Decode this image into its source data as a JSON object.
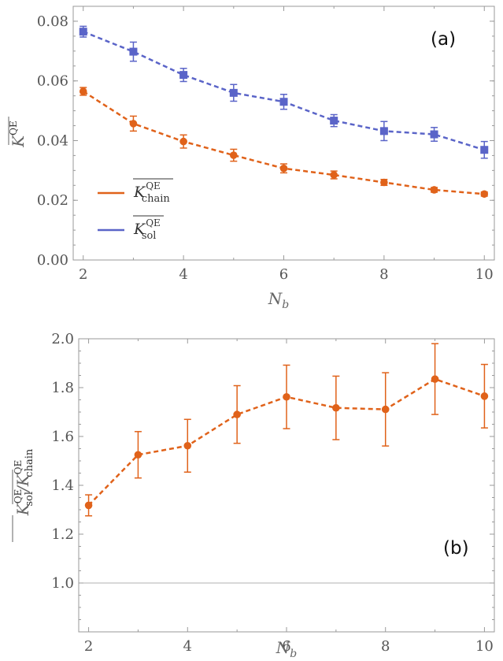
{
  "colors": {
    "orange": "#e0621a",
    "blue": "#5a64c8",
    "axis": "#9a9a9a"
  },
  "chart_data": [
    {
      "type": "line",
      "panel_label": "(a)",
      "xlabel": "N",
      "xlabel_sub": "b",
      "ylabel": "K",
      "ylabel_sup": "QE",
      "xlim": [
        1.8,
        10.2
      ],
      "ylim": [
        0,
        0.085
      ],
      "xticks": [
        2,
        4,
        6,
        8,
        10
      ],
      "xtick_labels": [
        "2",
        "4",
        "6",
        "8",
        "10"
      ],
      "yticks": [
        0,
        0.02,
        0.04,
        0.06,
        0.08
      ],
      "ytick_labels": [
        "0.00",
        "0.02",
        "0.04",
        "0.06",
        "0.08"
      ],
      "x": [
        2,
        3,
        4,
        5,
        6,
        7,
        8,
        9,
        10
      ],
      "series": [
        {
          "name": "K_chain",
          "legend_main": "K",
          "legend_sup": "QE",
          "legend_sub": "chain",
          "color": "#e0621a",
          "marker": "circle",
          "values": [
            0.0565,
            0.0457,
            0.0397,
            0.0351,
            0.0307,
            0.0285,
            0.026,
            0.0235,
            0.0221
          ],
          "errors": [
            0.0013,
            0.0025,
            0.0022,
            0.002,
            0.0015,
            0.0013,
            0.001,
            0.0008,
            0.0007
          ]
        },
        {
          "name": "K_sol",
          "legend_main": "K",
          "legend_sup": "QE",
          "legend_sub": "sol",
          "color": "#5a64c8",
          "marker": "square",
          "values": [
            0.0765,
            0.0698,
            0.062,
            0.056,
            0.053,
            0.0467,
            0.0432,
            0.0421,
            0.0369
          ],
          "errors": [
            0.0018,
            0.0032,
            0.0022,
            0.0028,
            0.0025,
            0.002,
            0.0032,
            0.0023,
            0.0028
          ]
        }
      ]
    },
    {
      "type": "line",
      "panel_label": "(b)",
      "xlabel": "N",
      "xlabel_sub": "b",
      "ylabel_num": "K",
      "ylabel_num_sub": "sol",
      "ylabel_den": "K",
      "ylabel_den_sub": "chain",
      "ylabel_sup": "QE",
      "xlim": [
        1.8,
        10.2
      ],
      "ylim": [
        0.8,
        2.0
      ],
      "xticks": [
        2,
        4,
        6,
        8,
        10
      ],
      "xtick_labels": [
        "2",
        "4",
        "6",
        "8",
        "10"
      ],
      "yticks": [
        1.0,
        1.2,
        1.4,
        1.6,
        1.8,
        2.0
      ],
      "ytick_labels": [
        "1.0",
        "1.2",
        "1.4",
        "1.6",
        "1.8",
        "2.0"
      ],
      "reference_line": 1.0,
      "x": [
        2,
        3,
        4,
        5,
        6,
        7,
        8,
        9,
        10
      ],
      "series": [
        {
          "name": "ratio",
          "color": "#e0621a",
          "marker": "circle",
          "values": [
            1.318,
            1.525,
            1.562,
            1.69,
            1.762,
            1.717,
            1.711,
            1.835,
            1.765
          ],
          "errors": [
            0.043,
            0.095,
            0.108,
            0.118,
            0.13,
            0.13,
            0.15,
            0.145,
            0.13
          ]
        }
      ]
    }
  ]
}
